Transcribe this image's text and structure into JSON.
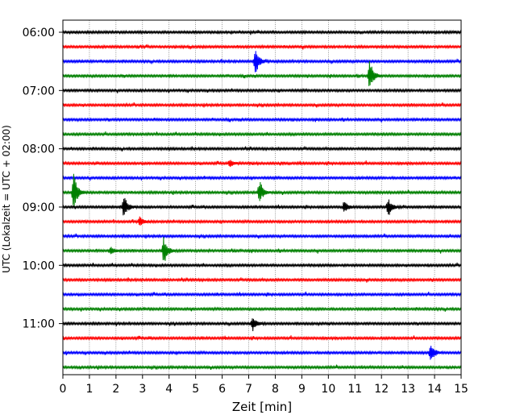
{
  "chart_data": {
    "type": "line",
    "subtype": "helicorder",
    "xlabel": "Zeit  [min]",
    "ylabel": "UTC (Lokalzeit = UTC + 02:00)",
    "xlim": [
      0,
      15
    ],
    "x_ticks": [
      0,
      1,
      2,
      3,
      4,
      5,
      6,
      7,
      8,
      9,
      10,
      11,
      12,
      13,
      14,
      15
    ],
    "y_tick_labels": [
      "06:00",
      "07:00",
      "08:00",
      "09:00",
      "10:00",
      "11:00"
    ],
    "trace_interval_minutes": 15,
    "trace_count": 24,
    "trace_colors": [
      "#000000",
      "#ff0000",
      "#0000ff",
      "#008000"
    ],
    "x_grid": "dotted vertical lines at each minute",
    "events": [
      {
        "trace": 2,
        "minute": 7.25,
        "amplitude": 1.0
      },
      {
        "trace": 3,
        "minute": 11.55,
        "amplitude": 1.3
      },
      {
        "trace": 9,
        "minute": 6.3,
        "amplitude": 0.25
      },
      {
        "trace": 11,
        "minute": 0.4,
        "amplitude": 1.6
      },
      {
        "trace": 11,
        "minute": 7.4,
        "amplitude": 0.9
      },
      {
        "trace": 12,
        "minute": 2.3,
        "amplitude": 0.9
      },
      {
        "trace": 12,
        "minute": 10.6,
        "amplitude": 0.5
      },
      {
        "trace": 12,
        "minute": 12.25,
        "amplitude": 0.75
      },
      {
        "trace": 13,
        "minute": 2.9,
        "amplitude": 0.4
      },
      {
        "trace": 15,
        "minute": 1.8,
        "amplitude": 0.3
      },
      {
        "trace": 15,
        "minute": 3.8,
        "amplitude": 1.1
      },
      {
        "trace": 20,
        "minute": 7.15,
        "amplitude": 0.55
      },
      {
        "trace": 22,
        "minute": 13.85,
        "amplitude": 0.75
      }
    ]
  }
}
